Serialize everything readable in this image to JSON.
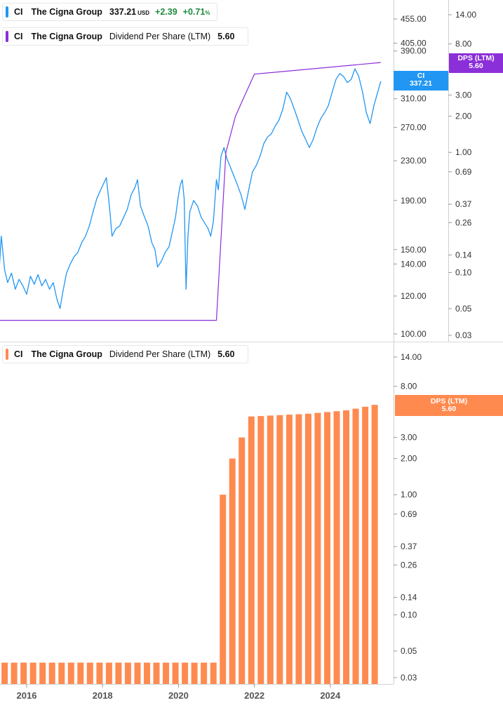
{
  "legends": {
    "price": {
      "symbol": "CI",
      "name": "The Cigna Group",
      "value": "337.21",
      "currency": "USD",
      "change": "+2.39",
      "change_pct": "+0.71",
      "pct_sign": "%",
      "color": "#2196f3"
    },
    "dps_top": {
      "symbol": "CI",
      "name": "The Cigna Group",
      "metric": "Dividend Per Share (LTM)",
      "value": "5.60",
      "color": "#8b2fd9"
    },
    "dps_bottom": {
      "symbol": "CI",
      "name": "The Cigna Group",
      "metric": "Dividend Per Share (LTM)",
      "value": "5.60",
      "color": "#ff8a50"
    }
  },
  "tags": {
    "price": {
      "label": "CI",
      "value": "337.21",
      "color": "#2196f3"
    },
    "dps_top": {
      "label": "DPS (LTM)",
      "value": "5.60",
      "color": "#8b2fd9"
    },
    "dps_bottom": {
      "label": "DPS (LTM)",
      "value": "5.60",
      "color": "#ff8a50"
    }
  },
  "chart_data": [
    {
      "type": "line",
      "scale": "log",
      "series": [
        {
          "name": "CI",
          "color": "#2196f3",
          "axis": "price",
          "points": [
            [
              2015.25,
              125
            ],
            [
              2015.33,
              160
            ],
            [
              2015.42,
              136
            ],
            [
              2015.5,
              128
            ],
            [
              2015.6,
              134
            ],
            [
              2015.7,
              124
            ],
            [
              2015.8,
              130
            ],
            [
              2015.9,
              126
            ],
            [
              2016.0,
              121
            ],
            [
              2016.1,
              132
            ],
            [
              2016.2,
              127
            ],
            [
              2016.3,
              133
            ],
            [
              2016.4,
              126
            ],
            [
              2016.5,
              130
            ],
            [
              2016.6,
              124
            ],
            [
              2016.7,
              128
            ],
            [
              2016.8,
              118
            ],
            [
              2016.88,
              113
            ],
            [
              2016.95,
              122
            ],
            [
              2017.05,
              134
            ],
            [
              2017.15,
              140
            ],
            [
              2017.25,
              145
            ],
            [
              2017.35,
              148
            ],
            [
              2017.45,
              155
            ],
            [
              2017.55,
              160
            ],
            [
              2017.65,
              168
            ],
            [
              2017.75,
              180
            ],
            [
              2017.85,
              192
            ],
            [
              2017.95,
              200
            ],
            [
              2018.05,
              208
            ],
            [
              2018.1,
              212
            ],
            [
              2018.15,
              195
            ],
            [
              2018.2,
              178
            ],
            [
              2018.25,
              160
            ],
            [
              2018.35,
              166
            ],
            [
              2018.45,
              168
            ],
            [
              2018.55,
              175
            ],
            [
              2018.65,
              182
            ],
            [
              2018.75,
              195
            ],
            [
              2018.85,
              202
            ],
            [
              2018.92,
              210
            ],
            [
              2019.0,
              185
            ],
            [
              2019.1,
              176
            ],
            [
              2019.2,
              168
            ],
            [
              2019.3,
              155
            ],
            [
              2019.38,
              150
            ],
            [
              2019.45,
              138
            ],
            [
              2019.55,
              142
            ],
            [
              2019.65,
              148
            ],
            [
              2019.75,
              152
            ],
            [
              2019.85,
              165
            ],
            [
              2019.92,
              175
            ],
            [
              2020.0,
              195
            ],
            [
              2020.05,
              205
            ],
            [
              2020.1,
              210
            ],
            [
              2020.15,
              192
            ],
            [
              2020.2,
              124
            ],
            [
              2020.25,
              160
            ],
            [
              2020.3,
              180
            ],
            [
              2020.4,
              190
            ],
            [
              2020.5,
              185
            ],
            [
              2020.6,
              175
            ],
            [
              2020.7,
              170
            ],
            [
              2020.78,
              166
            ],
            [
              2020.85,
              160
            ],
            [
              2020.92,
              172
            ],
            [
              2021.0,
              210
            ],
            [
              2021.05,
              200
            ],
            [
              2021.12,
              235
            ],
            [
              2021.2,
              245
            ],
            [
              2021.28,
              232
            ],
            [
              2021.35,
              225
            ],
            [
              2021.45,
              215
            ],
            [
              2021.55,
              205
            ],
            [
              2021.65,
              195
            ],
            [
              2021.75,
              182
            ],
            [
              2021.85,
              200
            ],
            [
              2021.95,
              218
            ],
            [
              2022.05,
              225
            ],
            [
              2022.15,
              235
            ],
            [
              2022.25,
              250
            ],
            [
              2022.35,
              258
            ],
            [
              2022.45,
              262
            ],
            [
              2022.55,
              272
            ],
            [
              2022.65,
              280
            ],
            [
              2022.75,
              295
            ],
            [
              2022.85,
              320
            ],
            [
              2022.95,
              310
            ],
            [
              2023.05,
              295
            ],
            [
              2023.15,
              280
            ],
            [
              2023.25,
              265
            ],
            [
              2023.35,
              255
            ],
            [
              2023.45,
              245
            ],
            [
              2023.55,
              255
            ],
            [
              2023.65,
              270
            ],
            [
              2023.75,
              282
            ],
            [
              2023.85,
              290
            ],
            [
              2023.95,
              300
            ],
            [
              2024.05,
              320
            ],
            [
              2024.15,
              340
            ],
            [
              2024.25,
              350
            ],
            [
              2024.35,
              345
            ],
            [
              2024.45,
              335
            ],
            [
              2024.55,
              340
            ],
            [
              2024.65,
              358
            ],
            [
              2024.75,
              345
            ],
            [
              2024.85,
              320
            ],
            [
              2024.95,
              290
            ],
            [
              2025.05,
              275
            ],
            [
              2025.15,
              300
            ],
            [
              2025.25,
              320
            ],
            [
              2025.33,
              337.21
            ]
          ]
        },
        {
          "name": "DPS (LTM)",
          "color": "#8b2fd9",
          "axis": "dps",
          "points": [
            [
              2015.17,
              0.04
            ],
            [
              2021.0,
              0.04
            ],
            [
              2021.25,
              1.0
            ],
            [
              2021.5,
              2.0
            ],
            [
              2021.75,
              3.0
            ],
            [
              2022.0,
              4.48
            ],
            [
              2025.33,
              5.6
            ]
          ]
        }
      ],
      "price_axis": {
        "ticks": [
          455.0,
          405.0,
          390.0,
          310.0,
          270.0,
          230.0,
          190.0,
          150.0,
          140.0,
          120.0,
          100.0
        ]
      },
      "dps_axis": {
        "ticks": [
          14.0,
          8.0,
          3.0,
          2.0,
          1.0,
          0.69,
          0.37,
          0.26,
          0.14,
          0.1,
          0.05,
          0.03
        ]
      }
    },
    {
      "type": "bar",
      "scale": "log",
      "series": [
        {
          "name": "DPS (LTM)",
          "color": "#ff8a50",
          "x": [
            2015.17,
            2015.42,
            2015.67,
            2015.92,
            2016.17,
            2016.42,
            2016.67,
            2016.92,
            2017.17,
            2017.42,
            2017.67,
            2017.92,
            2018.17,
            2018.42,
            2018.67,
            2018.92,
            2019.17,
            2019.42,
            2019.67,
            2019.92,
            2020.17,
            2020.42,
            2020.67,
            2020.92,
            2021.17,
            2021.42,
            2021.67,
            2021.92,
            2022.17,
            2022.42,
            2022.67,
            2022.92,
            2023.17,
            2023.42,
            2023.67,
            2023.92,
            2024.17,
            2024.42,
            2024.67,
            2024.92,
            2025.17
          ],
          "values": [
            0.04,
            0.04,
            0.04,
            0.04,
            0.04,
            0.04,
            0.04,
            0.04,
            0.04,
            0.04,
            0.04,
            0.04,
            0.04,
            0.04,
            0.04,
            0.04,
            0.04,
            0.04,
            0.04,
            0.04,
            0.04,
            0.04,
            0.04,
            0.04,
            1.0,
            2.0,
            3.0,
            4.48,
            4.52,
            4.56,
            4.6,
            4.64,
            4.68,
            4.72,
            4.8,
            4.88,
            4.96,
            5.04,
            5.2,
            5.4,
            5.6
          ]
        }
      ],
      "y_ticks": [
        14.0,
        8.0,
        3.0,
        2.0,
        1.0,
        0.69,
        0.37,
        0.26,
        0.14,
        0.1,
        0.05,
        0.03
      ],
      "x_ticks": [
        2016,
        2018,
        2020,
        2022,
        2024
      ],
      "x_tick_labels": [
        "2016",
        "2018",
        "2020",
        "2022",
        "2024"
      ],
      "xlim": [
        2015.0,
        2026.0
      ]
    }
  ]
}
